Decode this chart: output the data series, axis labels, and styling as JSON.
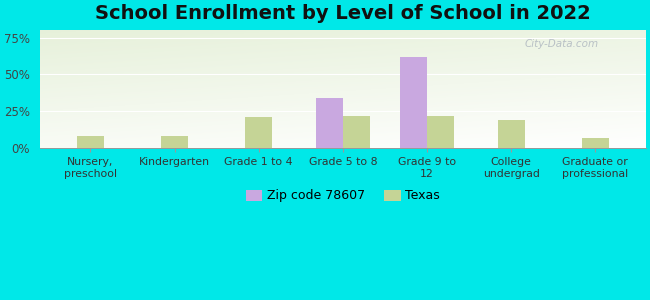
{
  "title": "School Enrollment by Level of School in 2022",
  "categories": [
    "Nursery,\npreschool",
    "Kindergarten",
    "Grade 1 to 4",
    "Grade 5 to 8",
    "Grade 9 to\n12",
    "College\nundergrad",
    "Graduate or\nprofessional"
  ],
  "zip_values": [
    0.0,
    0.0,
    0.0,
    0.34,
    0.62,
    0.0,
    0.0
  ],
  "texas_values": [
    0.08,
    0.08,
    0.21,
    0.22,
    0.22,
    0.19,
    0.07
  ],
  "zip_color": "#c9a8e0",
  "texas_color": "#c5d496",
  "background_outer": "#00e8e8",
  "background_inner_top": "#f5f5f0",
  "background_inner_bottom": "#d8ebb0",
  "ylim": [
    0,
    0.8
  ],
  "yticks": [
    0.0,
    0.25,
    0.5,
    0.75
  ],
  "ytick_labels": [
    "0%",
    "25%",
    "50%",
    "75%"
  ],
  "legend_zip_label": "Zip code 78607",
  "legend_texas_label": "Texas",
  "title_fontsize": 14,
  "watermark": "City-Data.com",
  "bar_width": 0.32
}
